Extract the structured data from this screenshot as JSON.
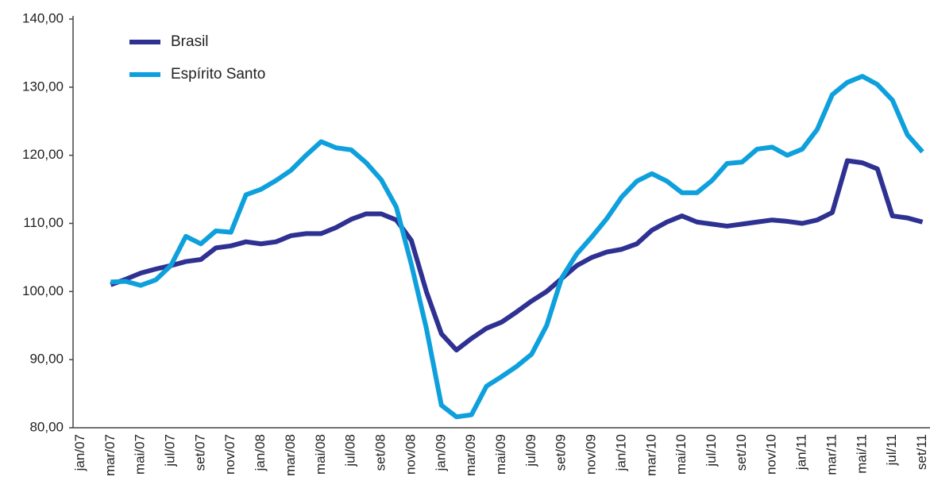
{
  "chart_data": {
    "type": "line",
    "categories": [
      "jan/07",
      null,
      "mar/07",
      null,
      "mai/07",
      null,
      "jul/07",
      null,
      "set/07",
      null,
      "nov/07",
      null,
      "jan/08",
      null,
      "mar/08",
      null,
      "mai/08",
      null,
      "jul/08",
      null,
      "set/08",
      null,
      "nov/08",
      null,
      "jan/09",
      null,
      "mar/09",
      null,
      "mai/09",
      null,
      "jul/09",
      null,
      "set/09",
      null,
      "nov/09",
      null,
      "jan/10",
      null,
      "mar/10",
      null,
      "mai/10",
      null,
      "jul/10",
      null,
      "set/10",
      null,
      "nov/10",
      null,
      "jan/11",
      null,
      "mar/11",
      null,
      "mai/11",
      null,
      "jul/11",
      null,
      "set/11"
    ],
    "series": [
      {
        "name": "Brasil",
        "color": "#2e3192",
        "values": [
          null,
          null,
          101.0,
          101.8,
          102.7,
          103.3,
          103.8,
          104.4,
          104.7,
          106.4,
          106.7,
          107.3,
          107.0,
          107.3,
          108.2,
          108.5,
          108.5,
          109.4,
          110.6,
          111.4,
          111.4,
          110.5,
          107.5,
          100.0,
          93.8,
          91.4,
          93.1,
          94.6,
          95.5,
          97.0,
          98.6,
          100.0,
          101.9,
          103.8,
          105.0,
          105.8,
          106.2,
          107.0,
          109.0,
          110.2,
          111.1,
          110.2,
          109.9,
          109.6,
          109.9,
          110.2,
          110.5,
          110.3,
          110.0,
          110.5,
          111.6,
          119.2,
          118.9,
          118.0,
          111.1,
          110.8,
          110.2
        ]
      },
      {
        "name": "Espírito Santo",
        "color": "#0ea0dc",
        "values": [
          null,
          null,
          101.4,
          101.5,
          100.9,
          101.7,
          103.8,
          108.1,
          107.0,
          108.9,
          108.7,
          114.2,
          115.0,
          116.3,
          117.8,
          120.0,
          122.0,
          121.1,
          120.8,
          118.9,
          116.4,
          112.4,
          104.0,
          94.6,
          83.3,
          81.6,
          81.9,
          86.1,
          87.5,
          89.0,
          90.8,
          95.0,
          102.0,
          105.5,
          108.0,
          110.7,
          113.9,
          116.2,
          117.3,
          116.2,
          114.5,
          114.5,
          116.3,
          118.8,
          119.0,
          120.9,
          121.2,
          120.0,
          120.9,
          123.8,
          128.9,
          130.7,
          131.6,
          130.4,
          128.1,
          123.0,
          120.5
        ]
      }
    ],
    "ylim": [
      80,
      140
    ],
    "yticks": [
      {
        "value": 80,
        "label": "80,00"
      },
      {
        "value": 90,
        "label": "90,00"
      },
      {
        "value": 100,
        "label": "100,00"
      },
      {
        "value": 110,
        "label": "110,00"
      },
      {
        "value": 120,
        "label": "120,00"
      },
      {
        "value": 130,
        "label": "130,00"
      },
      {
        "value": 140,
        "label": "140,00"
      }
    ],
    "grid": false,
    "legend": "top-left"
  }
}
